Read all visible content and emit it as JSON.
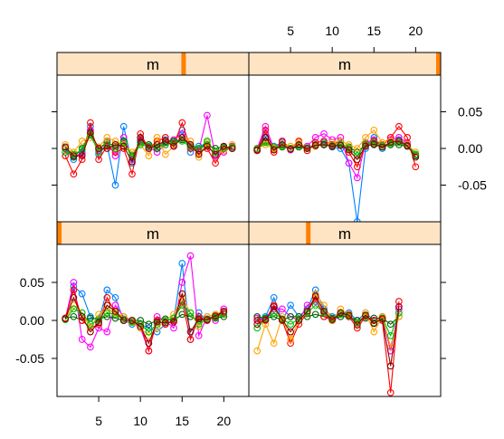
{
  "chart_data": {
    "type": "line",
    "layout": "2x2 lattice panels, x scales shared, y scales shared",
    "x_axis": {
      "ticks": [
        5,
        10,
        15,
        20
      ],
      "tick_labels": [
        "5",
        "10",
        "15",
        "20"
      ],
      "xlim": [
        0,
        23
      ]
    },
    "y_axis": {
      "ticks": [
        -0.05,
        0,
        0.05
      ],
      "tick_labels": [
        "-0.05",
        "0.00",
        "0.05"
      ],
      "ylim": [
        -0.1,
        0.1
      ]
    },
    "grid": false,
    "legend": "none",
    "marker": "open-circle",
    "strip_fill": "#ffe4c4",
    "strip_indicator_color": "#ff7f00",
    "series_colors": [
      "#0080ff",
      "#ff00ff",
      "#006400",
      "#ff0000",
      "#ffa500",
      "#00c000",
      "#8b0000",
      "#aaaaaa",
      "#c0c000",
      "#00c0c0"
    ],
    "panels": [
      {
        "strip_label": "m",
        "indicator_level": 0.66,
        "series": [
          {
            "values": [
              0.0,
              -0.015,
              -0.005,
              0.03,
              -0.008,
              0.005,
              -0.05,
              0.03,
              -0.02,
              0.012,
              0.002,
              0.0,
              0.012,
              0.01,
              0.025,
              -0.005,
              0.003,
              0.005,
              -0.01,
              0.0,
              0.002
            ]
          },
          {
            "values": [
              -0.005,
              -0.01,
              -0.008,
              0.025,
              -0.003,
              0.01,
              -0.01,
              0.015,
              -0.015,
              0.01,
              0.002,
              -0.005,
              0.005,
              0.012,
              0.02,
              0.003,
              -0.003,
              0.045,
              -0.01,
              -0.005,
              0.003
            ]
          },
          {
            "values": [
              0.0,
              -0.012,
              0.0,
              0.02,
              0.0,
              0.008,
              0.003,
              0.01,
              -0.01,
              0.008,
              0.005,
              0.0,
              0.008,
              0.01,
              0.012,
              0.005,
              0.0,
              0.005,
              0.0,
              0.002,
              0.0
            ]
          },
          {
            "values": [
              -0.01,
              -0.035,
              -0.015,
              0.035,
              -0.015,
              0.003,
              -0.005,
              0.0,
              -0.035,
              0.02,
              0.0,
              0.01,
              0.015,
              0.005,
              0.035,
              0.0,
              -0.005,
              0.0,
              -0.02,
              0.0,
              0.0
            ]
          },
          {
            "values": [
              0.005,
              -0.005,
              0.01,
              0.015,
              0.002,
              0.015,
              0.01,
              0.005,
              -0.005,
              0.005,
              -0.01,
              0.015,
              -0.008,
              0.003,
              0.015,
              0.01,
              -0.012,
              0.008,
              -0.005,
              -0.003,
              0.005
            ]
          },
          {
            "values": [
              -0.005,
              -0.008,
              -0.002,
              0.018,
              -0.005,
              0.005,
              0.0,
              0.008,
              -0.012,
              0.005,
              0.003,
              0.002,
              0.005,
              0.008,
              0.01,
              0.002,
              0.0,
              0.01,
              -0.005,
              0.0,
              0.002
            ]
          },
          {
            "values": [
              0.002,
              -0.01,
              -0.01,
              0.022,
              0.0,
              0.0,
              0.005,
              0.003,
              -0.018,
              0.015,
              0.0,
              0.005,
              0.01,
              0.003,
              0.015,
              0.005,
              -0.008,
              0.003,
              -0.008,
              0.003,
              0.0
            ]
          }
        ]
      },
      {
        "strip_label": "m",
        "indicator_level": 1.0,
        "series": [
          {
            "values": [
              -0.003,
              0.02,
              0.003,
              0.008,
              0.0,
              0.005,
              0.0,
              0.003,
              0.008,
              0.002,
              0.0,
              -0.02,
              -0.1,
              0.0,
              0.015,
              0.0,
              0.01,
              0.012,
              0.005,
              -0.008
            ]
          },
          {
            "values": [
              0.0,
              0.03,
              0.0,
              0.01,
              -0.002,
              0.005,
              0.003,
              0.015,
              0.02,
              0.012,
              0.015,
              -0.02,
              -0.04,
              0.008,
              0.012,
              0.005,
              0.012,
              0.015,
              0.008,
              -0.01
            ]
          },
          {
            "values": [
              -0.002,
              0.01,
              0.0,
              0.002,
              0.0,
              0.002,
              0.0,
              0.005,
              0.005,
              0.003,
              0.005,
              0.002,
              -0.005,
              0.005,
              0.005,
              0.002,
              0.005,
              0.005,
              0.003,
              -0.01
            ]
          },
          {
            "values": [
              -0.003,
              0.025,
              -0.005,
              0.01,
              0.0,
              0.01,
              -0.003,
              0.008,
              0.01,
              0.005,
              0.01,
              -0.005,
              -0.025,
              0.005,
              0.01,
              0.005,
              0.015,
              0.03,
              0.015,
              -0.025
            ]
          },
          {
            "values": [
              0.0,
              0.005,
              0.0,
              0.005,
              0.003,
              0.008,
              0.0,
              0.003,
              0.005,
              0.008,
              0.01,
              0.005,
              0.0,
              0.015,
              0.025,
              0.008,
              0.01,
              0.01,
              0.005,
              -0.005
            ]
          },
          {
            "values": [
              0.0,
              0.008,
              0.002,
              0.003,
              0.0,
              0.004,
              0.001,
              0.004,
              0.006,
              0.004,
              0.006,
              0.0,
              -0.01,
              0.006,
              0.008,
              0.004,
              0.006,
              0.008,
              0.004,
              -0.008
            ]
          },
          {
            "values": [
              -0.002,
              0.015,
              -0.002,
              0.005,
              -0.001,
              0.005,
              0.0,
              0.004,
              0.005,
              0.003,
              0.004,
              -0.002,
              -0.015,
              0.003,
              0.006,
              0.002,
              0.008,
              0.01,
              0.004,
              -0.012
            ]
          }
        ]
      },
      {
        "strip_label": "m",
        "indicator_level": 0.0,
        "series": [
          {
            "values": [
              0.003,
              0.045,
              0.035,
              0.005,
              0.0,
              0.04,
              0.03,
              0.0,
              -0.005,
              -0.005,
              -0.01,
              -0.015,
              -0.005,
              0.0,
              0.075,
              -0.025,
              0.01,
              0.0,
              0.008,
              0.01
            ]
          },
          {
            "values": [
              0.002,
              0.05,
              -0.025,
              -0.035,
              -0.01,
              -0.015,
              0.02,
              0.005,
              0.0,
              -0.01,
              -0.04,
              0.005,
              0.0,
              -0.01,
              0.05,
              0.085,
              -0.02,
              0.005,
              0.0,
              0.015
            ]
          },
          {
            "values": [
              0.003,
              0.005,
              0.0,
              0.003,
              0.002,
              0.005,
              0.003,
              0.0,
              0.0,
              0.0,
              -0.005,
              0.0,
              0.002,
              0.0,
              0.008,
              0.005,
              0.0,
              0.002,
              0.003,
              0.005
            ]
          },
          {
            "values": [
              0.003,
              0.04,
              0.0,
              -0.01,
              -0.005,
              0.03,
              0.01,
              0.0,
              0.0,
              -0.005,
              -0.04,
              0.0,
              -0.005,
              0.0,
              0.025,
              -0.025,
              0.005,
              0.0,
              0.005,
              0.01
            ]
          },
          {
            "values": [
              0.002,
              0.02,
              0.01,
              -0.01,
              0.008,
              0.015,
              0.01,
              0.005,
              -0.003,
              -0.01,
              -0.02,
              -0.01,
              0.0,
              0.008,
              0.03,
              0.01,
              -0.008,
              0.005,
              0.008,
              0.012
            ]
          },
          {
            "values": [
              0.001,
              0.015,
              0.01,
              -0.005,
              0.0,
              0.01,
              0.008,
              0.002,
              -0.002,
              -0.005,
              -0.015,
              -0.005,
              0.0,
              0.003,
              0.02,
              0.01,
              -0.005,
              0.002,
              0.004,
              0.008
            ]
          },
          {
            "values": [
              0.002,
              0.03,
              0.005,
              -0.015,
              -0.003,
              0.02,
              0.012,
              0.0,
              0.0,
              -0.008,
              -0.03,
              -0.002,
              -0.003,
              -0.002,
              0.035,
              -0.015,
              0.002,
              0.001,
              0.006,
              0.012
            ]
          }
        ]
      },
      {
        "strip_label": "m",
        "indicator_level": 0.31,
        "series": [
          {
            "values": [
              0.0,
              0.005,
              0.03,
              0.0,
              0.02,
              0.005,
              0.015,
              0.04,
              0.015,
              0.005,
              0.01,
              0.01,
              0.0,
              0.01,
              0.0,
              0.0,
              -0.035,
              0.01
            ]
          },
          {
            "values": [
              0.003,
              0.0,
              0.015,
              0.015,
              0.005,
              0.0,
              0.02,
              0.025,
              0.01,
              0.0,
              0.005,
              0.005,
              0.0,
              0.005,
              0.0,
              0.005,
              -0.04,
              0.015
            ]
          },
          {
            "values": [
              0.005,
              0.003,
              0.005,
              0.0,
              0.005,
              0.005,
              0.005,
              0.008,
              0.005,
              0.003,
              0.005,
              0.005,
              0.0,
              0.003,
              0.003,
              0.003,
              -0.005,
              0.005
            ]
          },
          {
            "values": [
              0.0,
              0.0,
              0.02,
              0.0,
              -0.03,
              -0.005,
              0.01,
              0.03,
              0.005,
              0.0,
              0.01,
              0.005,
              -0.01,
              0.005,
              0.0,
              0.0,
              -0.095,
              0.025
            ]
          },
          {
            "values": [
              -0.04,
              -0.005,
              -0.03,
              0.005,
              -0.025,
              0.0,
              0.01,
              0.035,
              0.02,
              0.0,
              0.015,
              0.008,
              -0.005,
              0.01,
              -0.015,
              0.005,
              -0.035,
              0.005
            ]
          },
          {
            "values": [
              -0.01,
              0.002,
              0.01,
              0.002,
              -0.005,
              0.002,
              0.01,
              0.02,
              0.01,
              0.002,
              0.008,
              0.006,
              -0.003,
              0.006,
              -0.003,
              0.003,
              -0.02,
              0.01
            ]
          },
          {
            "values": [
              -0.005,
              0.001,
              0.018,
              0.001,
              -0.015,
              0.0,
              0.012,
              0.032,
              0.012,
              0.001,
              0.01,
              0.007,
              -0.006,
              0.007,
              -0.004,
              0.002,
              -0.06,
              0.018
            ]
          }
        ]
      }
    ]
  }
}
